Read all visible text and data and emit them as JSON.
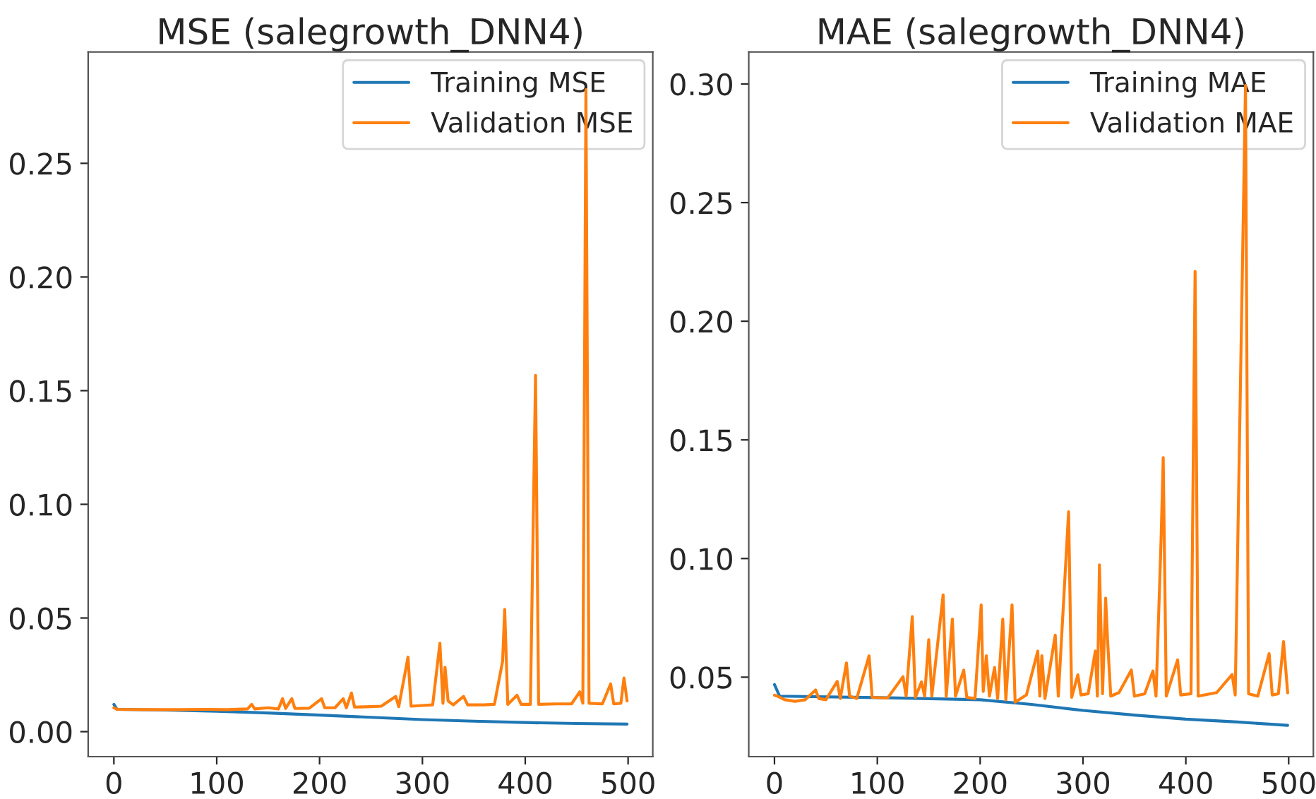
{
  "chart_data": [
    {
      "type": "line",
      "title": "MSE (salegrowth_DNN4)",
      "legend": "top right",
      "grid": false,
      "xlim": [
        -25,
        524
      ],
      "xticks": [
        0,
        100,
        200,
        300,
        400,
        500
      ],
      "ylim": [
        -0.011,
        0.299
      ],
      "yticks": [
        {
          "value": 0,
          "label": "0.00"
        },
        {
          "value": 0.05,
          "label": "0.05"
        },
        {
          "value": 0.1,
          "label": "0.10"
        },
        {
          "value": 0.15,
          "label": "0.15"
        },
        {
          "value": 0.2,
          "label": "0.20"
        },
        {
          "value": 0.25,
          "label": "0.25"
        }
      ],
      "series": [
        {
          "name": "Training MSE",
          "color": "#1f77b4",
          "x": [
            0,
            3,
            50,
            100,
            150,
            200,
            250,
            300,
            350,
            400,
            450,
            499
          ],
          "values": [
            0.012,
            0.0098,
            0.0095,
            0.009,
            0.0082,
            0.0073,
            0.0063,
            0.0053,
            0.0046,
            0.004,
            0.0036,
            0.0033
          ]
        },
        {
          "name": "Validation MSE",
          "color": "#ff7f0e",
          "x": [
            0,
            3,
            30,
            60,
            90,
            110,
            130,
            134,
            137,
            150,
            160,
            164,
            167,
            173,
            176,
            190,
            202,
            205,
            215,
            223,
            226,
            231,
            234,
            250,
            260,
            274,
            277,
            286,
            289,
            300,
            310,
            317,
            320,
            322,
            325,
            330,
            340,
            344,
            360,
            370,
            378,
            380,
            383,
            392,
            396,
            405,
            410,
            413,
            430,
            445,
            453,
            456,
            459,
            462,
            475,
            483,
            486,
            493,
            496,
            499
          ],
          "values": [
            0.0105,
            0.0098,
            0.0097,
            0.0097,
            0.0098,
            0.0097,
            0.01,
            0.012,
            0.01,
            0.0105,
            0.01,
            0.0145,
            0.0102,
            0.0145,
            0.0102,
            0.0103,
            0.0145,
            0.0105,
            0.0105,
            0.0145,
            0.0105,
            0.017,
            0.0108,
            0.011,
            0.0112,
            0.0155,
            0.011,
            0.0328,
            0.0112,
            0.0115,
            0.0118,
            0.0389,
            0.0125,
            0.0283,
            0.0135,
            0.0118,
            0.0155,
            0.0118,
            0.0118,
            0.012,
            0.031,
            0.0538,
            0.012,
            0.016,
            0.012,
            0.012,
            0.1567,
            0.012,
            0.0122,
            0.0122,
            0.0175,
            0.0125,
            0.2824,
            0.0125,
            0.0122,
            0.021,
            0.0122,
            0.0125,
            0.0236,
            0.0135
          ]
        }
      ]
    },
    {
      "type": "line",
      "title": "MAE (salegrowth_DNN4)",
      "legend": "top right",
      "grid": false,
      "xlim": [
        -25,
        524
      ],
      "xticks": [
        0,
        100,
        200,
        300,
        400,
        500
      ],
      "ylim": [
        0.0165,
        0.3135
      ],
      "yticks": [
        {
          "value": 0.05,
          "label": "0.05"
        },
        {
          "value": 0.1,
          "label": "0.10"
        },
        {
          "value": 0.15,
          "label": "0.15"
        },
        {
          "value": 0.2,
          "label": "0.20"
        },
        {
          "value": 0.25,
          "label": "0.25"
        },
        {
          "value": 0.3,
          "label": "0.30"
        }
      ],
      "series": [
        {
          "name": "Training MAE",
          "color": "#1f77b4",
          "x": [
            0,
            5,
            100,
            200,
            250,
            300,
            350,
            400,
            450,
            499
          ],
          "values": [
            0.0469,
            0.042,
            0.0414,
            0.0405,
            0.0385,
            0.036,
            0.034,
            0.0323,
            0.0311,
            0.0297
          ]
        },
        {
          "name": "Validation MAE",
          "color": "#ff7f0e",
          "x": [
            0,
            3,
            10,
            20,
            30,
            40,
            43,
            50,
            61,
            64,
            70,
            73,
            80,
            92,
            95,
            110,
            125,
            128,
            134,
            137,
            143,
            146,
            150,
            153,
            164,
            167,
            173,
            176,
            184,
            187,
            195,
            201,
            203,
            206,
            209,
            214,
            217,
            222,
            225,
            231,
            234,
            245,
            256,
            258,
            260,
            263,
            273,
            276,
            286,
            289,
            295,
            298,
            305,
            312,
            314,
            316,
            319,
            322,
            324,
            327,
            335,
            347,
            350,
            360,
            368,
            371,
            376,
            378,
            381,
            392,
            395,
            405,
            409,
            412,
            430,
            445,
            448,
            458,
            461,
            470,
            481,
            484,
            490,
            495,
            499
          ],
          "values": [
            0.0424,
            0.042,
            0.0405,
            0.0398,
            0.0405,
            0.0446,
            0.041,
            0.0405,
            0.0482,
            0.041,
            0.056,
            0.042,
            0.041,
            0.059,
            0.0415,
            0.0412,
            0.0502,
            0.042,
            0.0755,
            0.0415,
            0.048,
            0.042,
            0.0658,
            0.042,
            0.0847,
            0.0418,
            0.0745,
            0.042,
            0.053,
            0.0415,
            0.041,
            0.0804,
            0.044,
            0.059,
            0.042,
            0.0541,
            0.041,
            0.0745,
            0.0405,
            0.0804,
            0.0395,
            0.0425,
            0.061,
            0.042,
            0.059,
            0.041,
            0.0677,
            0.042,
            0.1197,
            0.0415,
            0.051,
            0.0425,
            0.043,
            0.061,
            0.042,
            0.0973,
            0.043,
            0.0833,
            0.0648,
            0.042,
            0.0435,
            0.053,
            0.042,
            0.043,
            0.0526,
            0.042,
            0.109,
            0.1425,
            0.042,
            0.0573,
            0.0425,
            0.043,
            0.221,
            0.042,
            0.0435,
            0.0511,
            0.0425,
            0.2994,
            0.043,
            0.042,
            0.0599,
            0.0425,
            0.043,
            0.065,
            0.0434
          ]
        }
      ]
    }
  ]
}
